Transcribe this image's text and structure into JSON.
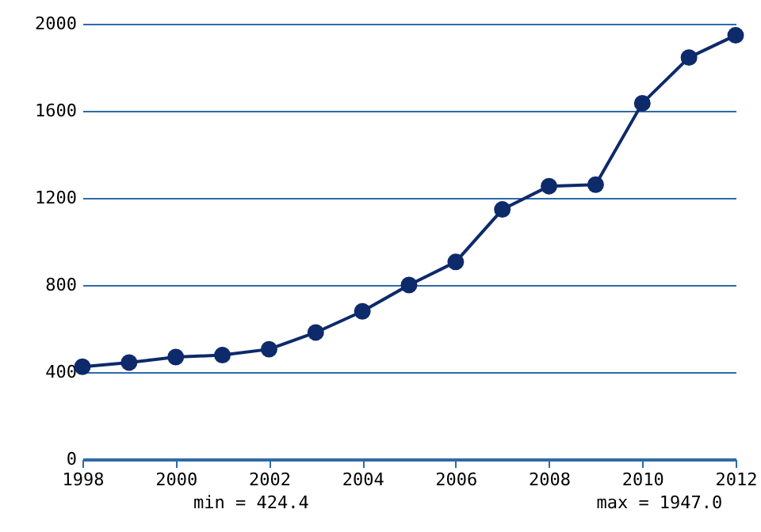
{
  "chart_data": {
    "type": "line",
    "x": [
      1998,
      1999,
      2000,
      2001,
      2002,
      2003,
      2004,
      2005,
      2006,
      2007,
      2008,
      2009,
      2010,
      2011,
      2012
    ],
    "series": [
      {
        "color": "#0d2a6b",
        "values": [
          424.4,
          444,
          469,
          478,
          505,
          582,
          679,
          800,
          906,
          1147,
          1254,
          1261,
          1635,
          1845,
          1947.0
        ]
      }
    ],
    "xlim": [
      1998,
      2012
    ],
    "xticks": [
      1998,
      2000,
      2002,
      2004,
      2006,
      2008,
      2010,
      2012
    ],
    "ylim": [
      0,
      2000
    ],
    "yticks": [
      0,
      400,
      800,
      1200,
      1600,
      2000
    ],
    "grid": "y",
    "marker": "circle",
    "line_style": "solid",
    "annotations": [
      "min = 424.4",
      "max = 1947.0"
    ]
  }
}
